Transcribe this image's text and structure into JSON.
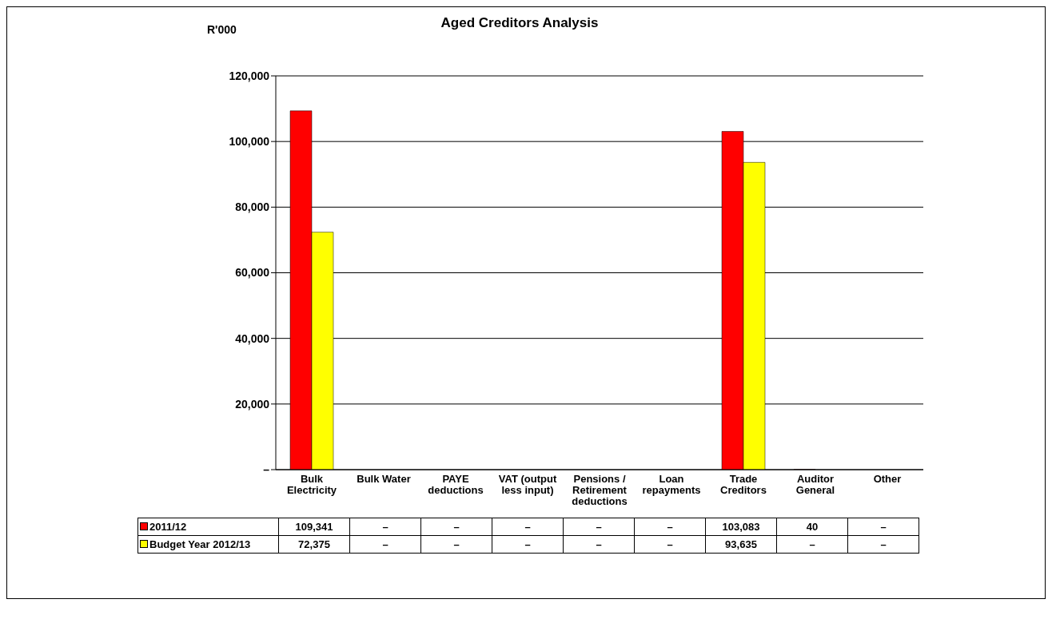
{
  "chart_data": {
    "type": "bar",
    "title": "Aged Creditors Analysis",
    "ylabel": "R'000",
    "categories": [
      "Bulk Electricity",
      "Bulk Water",
      "PAYE deductions",
      "VAT (output less input)",
      "Pensions / Retirement deductions",
      "Loan repayments",
      "Trade Creditors",
      "Auditor General",
      "Other"
    ],
    "series": [
      {
        "name": "2011/12",
        "color": "#ff0000",
        "values": [
          109341,
          0,
          0,
          0,
          0,
          0,
          103083,
          40,
          0
        ],
        "value_labels": [
          "109,341",
          "–",
          "–",
          "–",
          "–",
          "–",
          "103,083",
          "40",
          "–"
        ]
      },
      {
        "name": "Budget Year 2012/13",
        "color": "#ffff00",
        "values": [
          72375,
          0,
          0,
          0,
          0,
          0,
          93635,
          0,
          0
        ],
        "value_labels": [
          "72,375",
          "–",
          "–",
          "–",
          "–",
          "–",
          "93,635",
          "–",
          "–"
        ]
      }
    ],
    "ylim": [
      0,
      120000
    ],
    "yticks": [
      {
        "value": 0,
        "label": "–"
      },
      {
        "value": 20000,
        "label": "20,000"
      },
      {
        "value": 40000,
        "label": "40,000"
      },
      {
        "value": 60000,
        "label": "60,000"
      },
      {
        "value": 80000,
        "label": "80,000"
      },
      {
        "value": 100000,
        "label": "100,000"
      },
      {
        "value": 120000,
        "label": "120,000"
      }
    ],
    "grid": "y",
    "legend": "bottom"
  }
}
